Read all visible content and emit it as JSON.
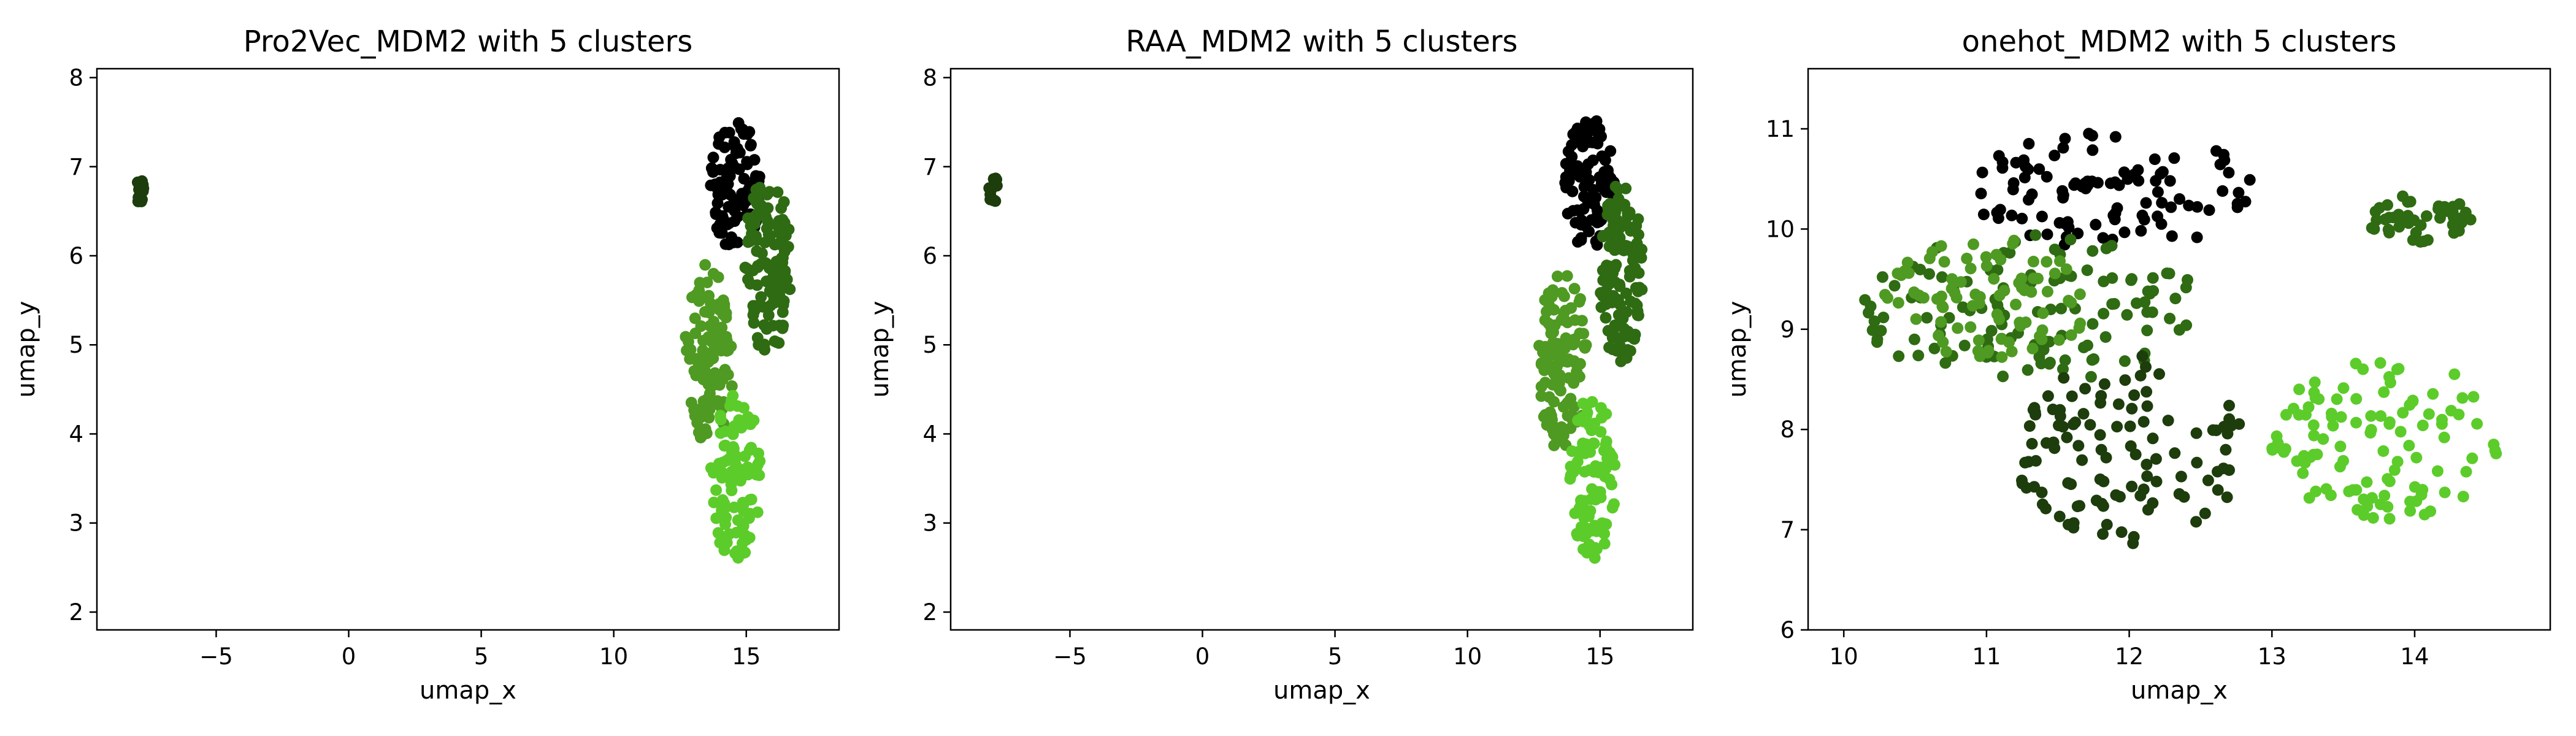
{
  "chart_data": [
    {
      "type": "scatter",
      "title": "Pro2Vec_MDM2 with 5 clusters",
      "xlabel": "umap_x",
      "ylabel": "umap_y",
      "xlim": [
        -9.5,
        18.5
      ],
      "ylim": [
        1.8,
        8.1
      ],
      "xticks": [
        -5,
        0,
        5,
        10,
        15
      ],
      "yticks": [
        2,
        3,
        4,
        5,
        6,
        7,
        8
      ],
      "grid": false,
      "legend": "none",
      "clusters": [
        {
          "color": "#000000",
          "count": 90,
          "center": [
            14.6,
            6.8
          ],
          "spread": [
            0.7,
            0.55
          ]
        },
        {
          "color": "#2e6b12",
          "count": 120,
          "center": [
            15.8,
            5.9
          ],
          "spread": [
            0.65,
            0.75
          ]
        },
        {
          "color": "#4f9a22",
          "count": 110,
          "center": [
            13.6,
            4.9
          ],
          "spread": [
            0.7,
            0.75
          ]
        },
        {
          "color": "#5ccc2a",
          "count": 100,
          "center": [
            14.6,
            3.5
          ],
          "spread": [
            0.7,
            0.7
          ]
        },
        {
          "color": "#1d3d0c",
          "count": 14,
          "center": [
            -7.9,
            6.75
          ],
          "spread": [
            0.12,
            0.13
          ]
        }
      ]
    },
    {
      "type": "scatter",
      "title": "RAA_MDM2 with 5 clusters",
      "xlabel": "umap_x",
      "ylabel": "umap_y",
      "xlim": [
        -9.5,
        18.5
      ],
      "ylim": [
        1.8,
        8.1
      ],
      "xticks": [
        -5,
        0,
        5,
        10,
        15
      ],
      "yticks": [
        2,
        3,
        4,
        5,
        6,
        7,
        8
      ],
      "grid": false,
      "legend": "none",
      "clusters": [
        {
          "color": "#000000",
          "count": 90,
          "center": [
            14.6,
            6.8
          ],
          "spread": [
            0.7,
            0.55
          ]
        },
        {
          "color": "#2e6b12",
          "count": 120,
          "center": [
            15.8,
            5.8
          ],
          "spread": [
            0.6,
            0.75
          ]
        },
        {
          "color": "#4f9a22",
          "count": 110,
          "center": [
            13.6,
            4.8
          ],
          "spread": [
            0.7,
            0.75
          ]
        },
        {
          "color": "#5ccc2a",
          "count": 100,
          "center": [
            14.7,
            3.5
          ],
          "spread": [
            0.65,
            0.7
          ]
        },
        {
          "color": "#1d3d0c",
          "count": 14,
          "center": [
            -7.9,
            6.75
          ],
          "spread": [
            0.12,
            0.13
          ]
        }
      ]
    },
    {
      "type": "scatter",
      "title": "onehot_MDM2 with 5 clusters",
      "xlabel": "umap_x",
      "ylabel": "umap_y",
      "xlim": [
        9.75,
        14.95
      ],
      "ylim": [
        6.0,
        11.6
      ],
      "xticks": [
        10,
        11,
        12,
        13,
        14
      ],
      "yticks": [
        6,
        7,
        8,
        9,
        10,
        11
      ],
      "grid": false,
      "legend": "none",
      "clusters": [
        {
          "color": "#000000",
          "count": 100,
          "center": [
            11.9,
            10.4
          ],
          "spread": [
            0.75,
            0.45
          ]
        },
        {
          "color": "#2e6b12",
          "count": 120,
          "center": [
            11.3,
            9.2
          ],
          "spread": [
            0.9,
            0.55
          ]
        },
        {
          "color": "#4f9a22",
          "count": 90,
          "center": [
            11.0,
            9.3
          ],
          "spread": [
            0.55,
            0.45
          ]
        },
        {
          "color": "#1d3d0c",
          "count": 110,
          "center": [
            12.0,
            7.8
          ],
          "spread": [
            0.6,
            0.7
          ]
        },
        {
          "color": "#5ccc2a",
          "count": 110,
          "center": [
            13.8,
            7.9
          ],
          "spread": [
            0.6,
            0.6
          ]
        },
        {
          "color": "#2e6b12",
          "count": 45,
          "center": [
            14.05,
            10.1
          ],
          "spread": [
            0.28,
            0.18
          ]
        }
      ]
    }
  ]
}
